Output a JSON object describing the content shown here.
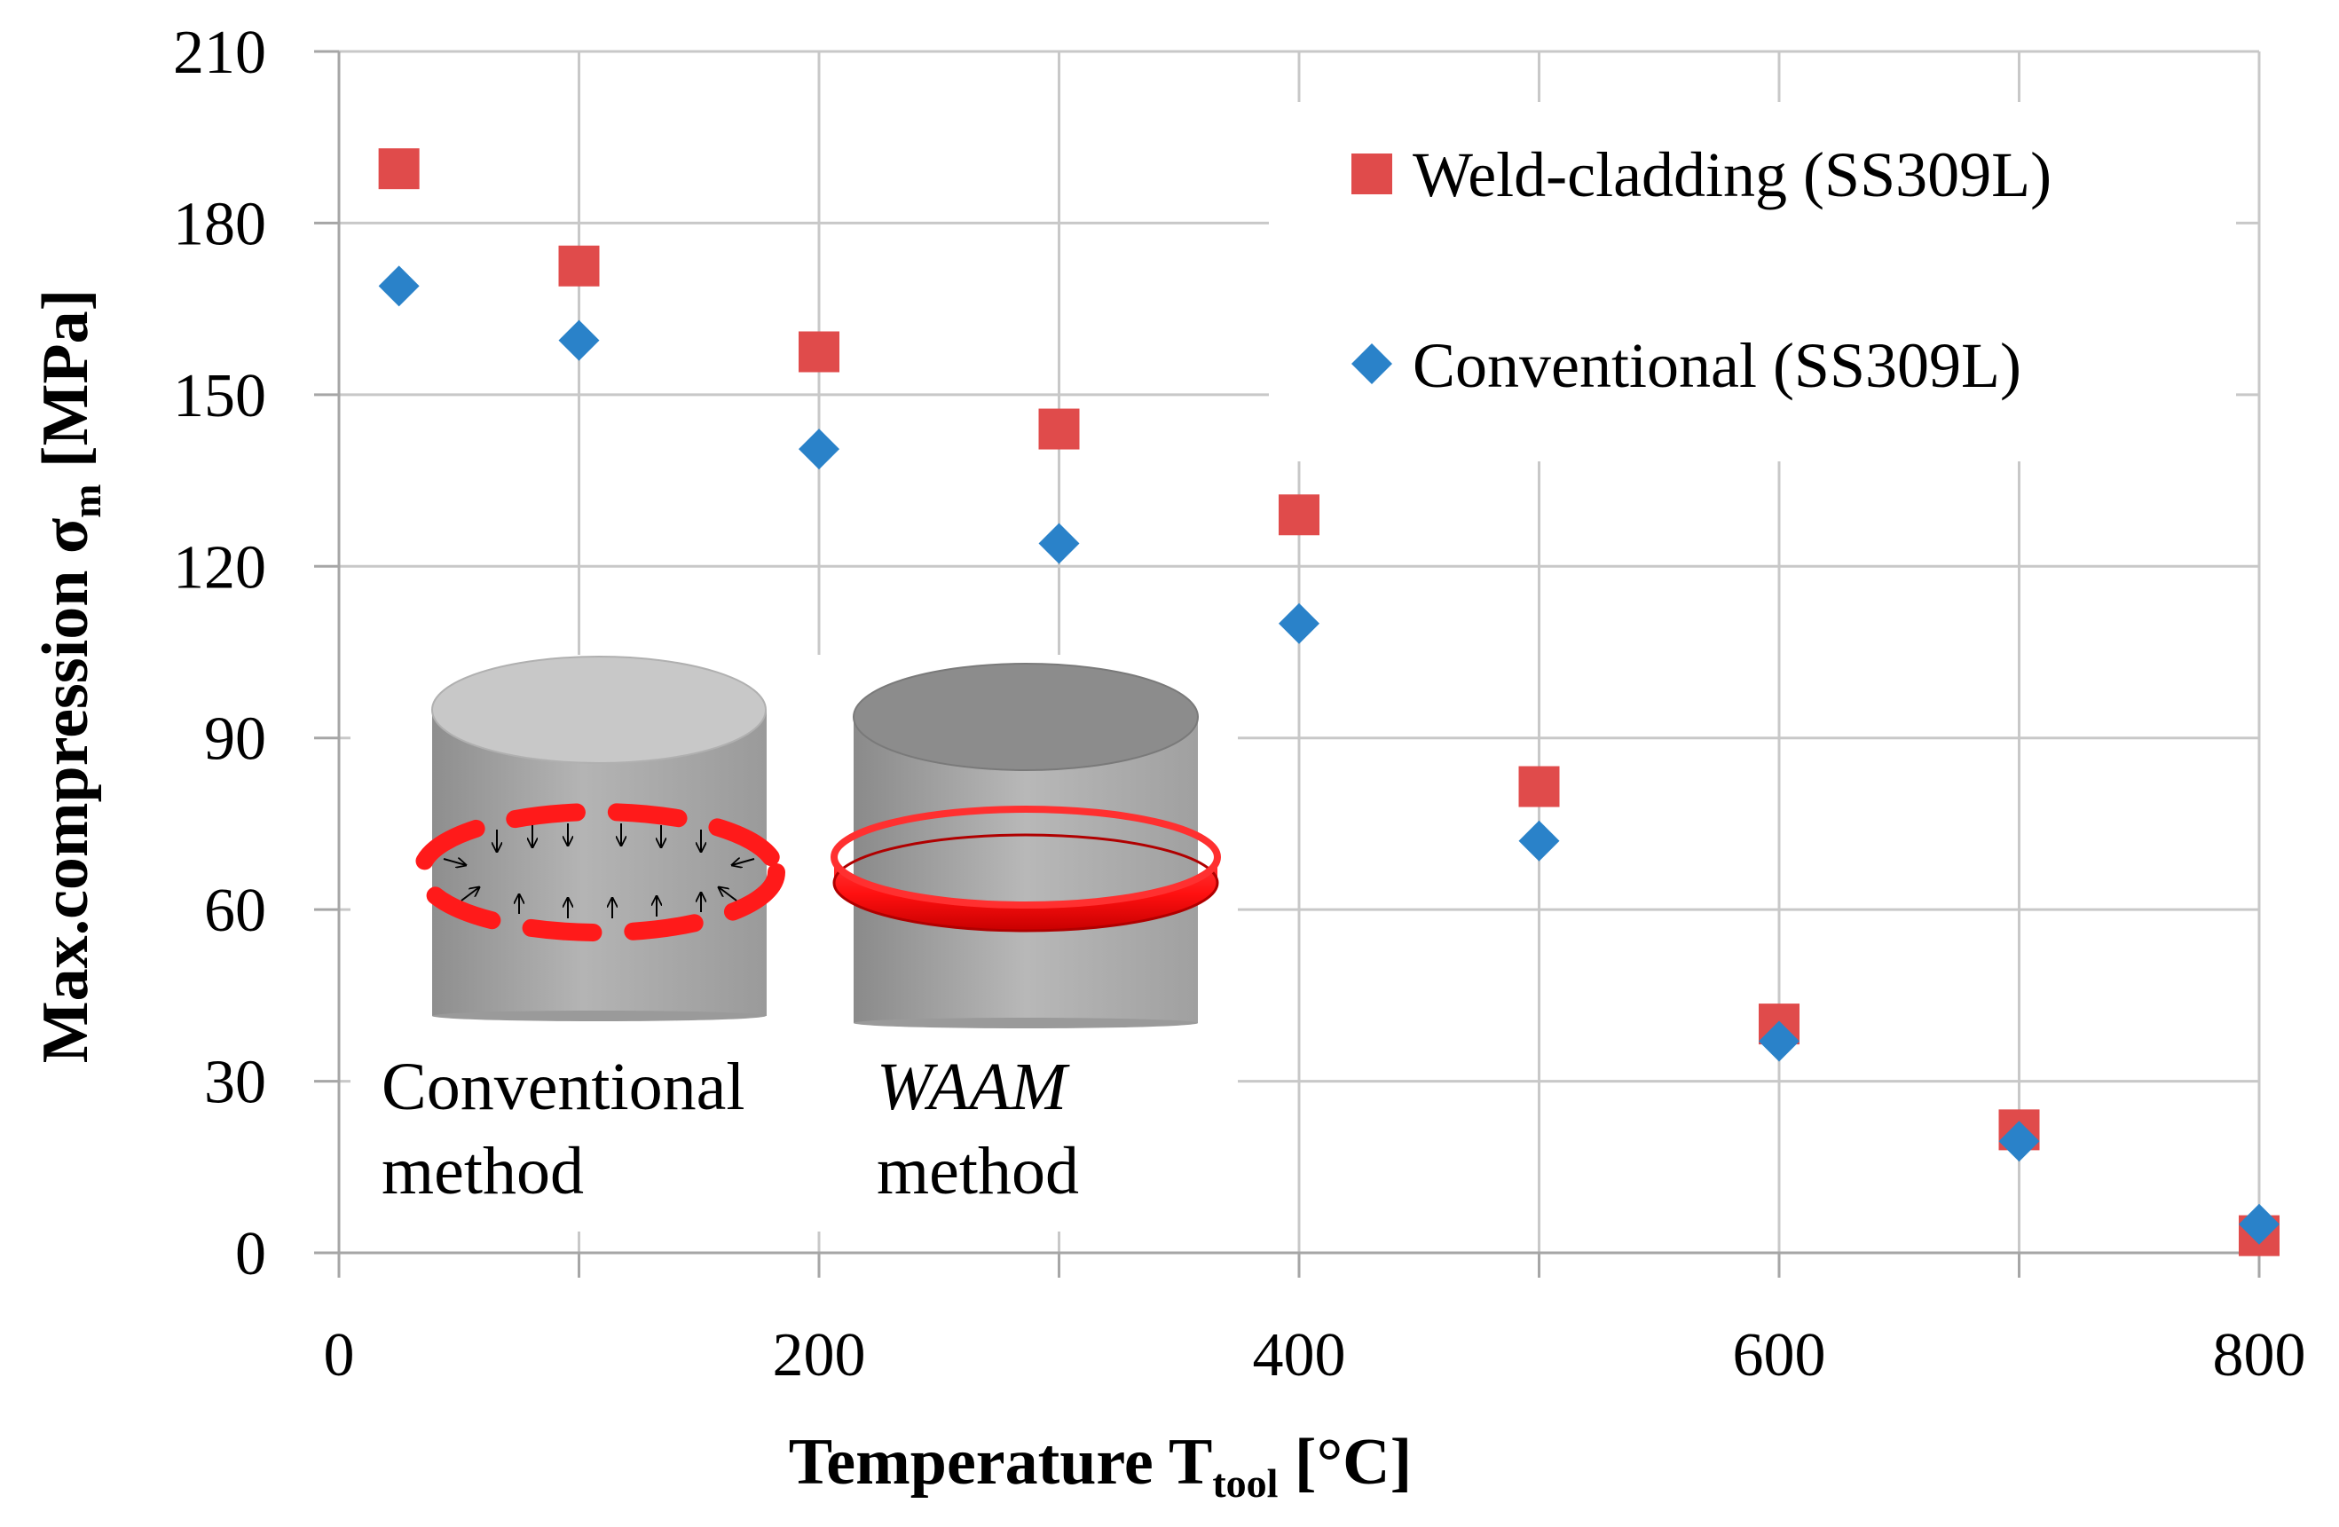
{
  "chart_data": {
    "type": "scatter",
    "xlabel": {
      "main": "Temperature T",
      "sub": "tool",
      "unit": " [°C]"
    },
    "ylabel": {
      "main": "Max.compression σ",
      "sub": "m",
      "unit": " [MPa]"
    },
    "xlim": [
      0,
      800
    ],
    "ylim": [
      0,
      210
    ],
    "x_ticks": [
      0,
      200,
      400,
      600,
      800
    ],
    "y_ticks": [
      0,
      30,
      60,
      90,
      120,
      150,
      180,
      210
    ],
    "x_gridlines": [
      0,
      100,
      200,
      300,
      400,
      500,
      600,
      700,
      800
    ],
    "grid": true,
    "legend_position": "top-right",
    "series": [
      {
        "name": "Weld-cladding (SS309L)",
        "marker": "square",
        "color": "#e04b4b",
        "x": [
          25,
          100,
          200,
          300,
          400,
          500,
          600,
          700,
          800
        ],
        "y": [
          189.5,
          172.5,
          157.5,
          144,
          129,
          81.5,
          40,
          21.5,
          3
        ]
      },
      {
        "name": "Conventional (SS309L)",
        "marker": "diamond",
        "color": "#2a82c9",
        "x": [
          25,
          100,
          200,
          300,
          400,
          500,
          600,
          700,
          800
        ],
        "y": [
          169,
          159.5,
          140.5,
          124,
          110,
          72,
          37,
          19.5,
          5
        ]
      }
    ]
  },
  "inset": {
    "conventional_label_line1": "Conventional",
    "conventional_label_line2": "method",
    "waam_label_line1": "WAAM",
    "waam_label_line2": "method",
    "ring_color": "#ff1a1a"
  }
}
